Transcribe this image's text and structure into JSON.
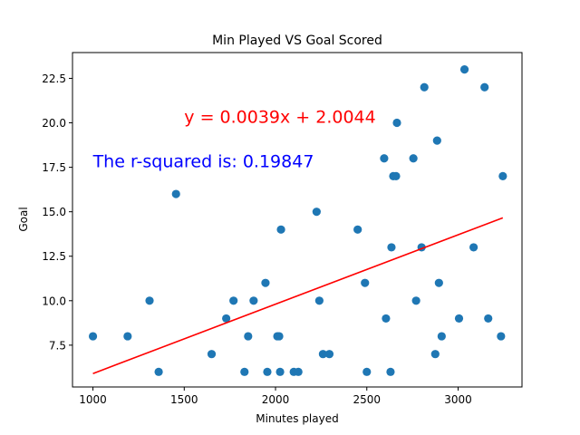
{
  "chart_data": {
    "type": "scatter",
    "title": "Min Played VS Goal Scored",
    "xlabel": "Minutes played",
    "ylabel": "Goal",
    "xlim": [
      888,
      3350
    ],
    "ylim": [
      5.15,
      23.95
    ],
    "xticks": [
      1000,
      1500,
      2000,
      2500,
      3000
    ],
    "xtick_labels": [
      "1000",
      "1500",
      "2000",
      "2500",
      "3000"
    ],
    "yticks": [
      7.5,
      10.0,
      12.5,
      15.0,
      17.5,
      20.0,
      22.5
    ],
    "ytick_labels": [
      "7.5",
      "10.0",
      "12.5",
      "15.0",
      "17.5",
      "20.0",
      "22.5"
    ],
    "grid": false,
    "point_color": "#1f77b4",
    "points": [
      {
        "x": 1000,
        "y": 8
      },
      {
        "x": 1190,
        "y": 8
      },
      {
        "x": 1310,
        "y": 10
      },
      {
        "x": 1360,
        "y": 6
      },
      {
        "x": 1455,
        "y": 16
      },
      {
        "x": 1650,
        "y": 7
      },
      {
        "x": 1730,
        "y": 9
      },
      {
        "x": 1770,
        "y": 10
      },
      {
        "x": 1830,
        "y": 6
      },
      {
        "x": 1850,
        "y": 8
      },
      {
        "x": 1880,
        "y": 10
      },
      {
        "x": 1945,
        "y": 11
      },
      {
        "x": 1955,
        "y": 6
      },
      {
        "x": 2010,
        "y": 8
      },
      {
        "x": 2020,
        "y": 8
      },
      {
        "x": 2025,
        "y": 6
      },
      {
        "x": 2030,
        "y": 14
      },
      {
        "x": 2100,
        "y": 6
      },
      {
        "x": 2125,
        "y": 6
      },
      {
        "x": 2225,
        "y": 15
      },
      {
        "x": 2240,
        "y": 10
      },
      {
        "x": 2260,
        "y": 7
      },
      {
        "x": 2295,
        "y": 7
      },
      {
        "x": 2450,
        "y": 14
      },
      {
        "x": 2490,
        "y": 11
      },
      {
        "x": 2500,
        "y": 6
      },
      {
        "x": 2595,
        "y": 18
      },
      {
        "x": 2605,
        "y": 9
      },
      {
        "x": 2630,
        "y": 6
      },
      {
        "x": 2635,
        "y": 13
      },
      {
        "x": 2645,
        "y": 17
      },
      {
        "x": 2660,
        "y": 17
      },
      {
        "x": 2665,
        "y": 20
      },
      {
        "x": 2755,
        "y": 18
      },
      {
        "x": 2770,
        "y": 10
      },
      {
        "x": 2800,
        "y": 13
      },
      {
        "x": 2815,
        "y": 22
      },
      {
        "x": 2875,
        "y": 7
      },
      {
        "x": 2885,
        "y": 19
      },
      {
        "x": 2895,
        "y": 11
      },
      {
        "x": 2910,
        "y": 8
      },
      {
        "x": 3005,
        "y": 9
      },
      {
        "x": 3035,
        "y": 23
      },
      {
        "x": 3085,
        "y": 13
      },
      {
        "x": 3145,
        "y": 22
      },
      {
        "x": 3165,
        "y": 9
      },
      {
        "x": 3235,
        "y": 8
      },
      {
        "x": 3245,
        "y": 17
      }
    ],
    "regression": {
      "slope": 0.0039,
      "intercept": 2.0044,
      "x_range": [
        1000,
        3245
      ],
      "color": "#ff0000"
    },
    "annotations": [
      {
        "text": "y = 0.0039x + 2.0044",
        "x": 1500,
        "y": 20.0,
        "color": "#ff0000"
      },
      {
        "text": "The r-squared is: 0.19847",
        "x": 1000,
        "y": 17.5,
        "color": "#0000ff"
      }
    ]
  }
}
